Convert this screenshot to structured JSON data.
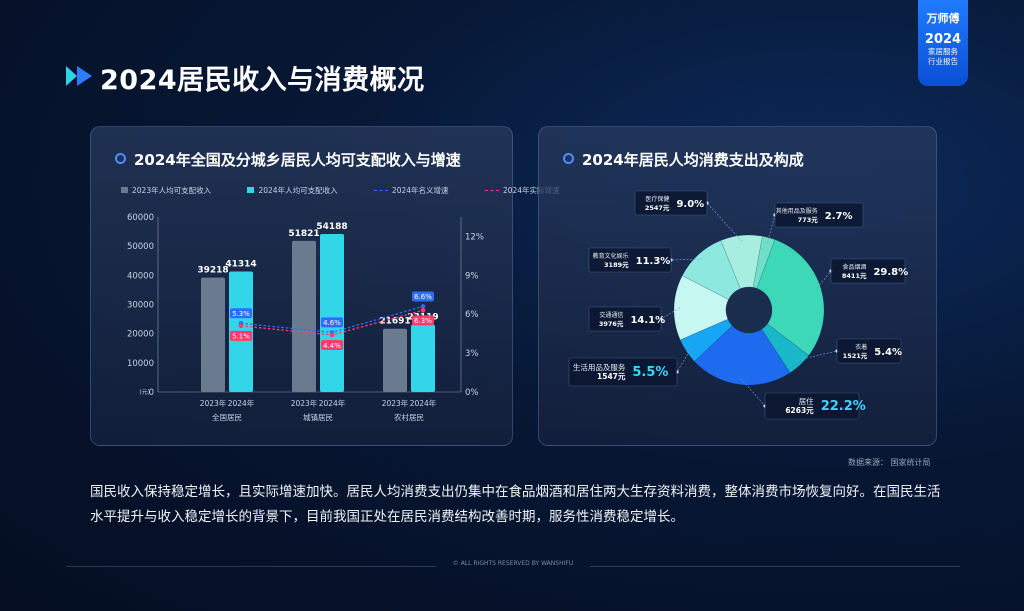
{
  "header": {
    "title": "2024居民收入与消费概况"
  },
  "brand": {
    "name": "万师傅",
    "year": "2024",
    "line1": "家居服务",
    "line2": "行业报告"
  },
  "left_panel": {
    "title": "2024年全国及分城乡居民人均可支配收入与增速",
    "legend": [
      "2023年人均可支配收入",
      "2024年人均可支配收入",
      "2024年名义增速",
      "2024年实际增速"
    ]
  },
  "right_panel": {
    "title": "2024年居民人均消费支出及构成"
  },
  "colors": {
    "bar2023": "#6b7b8f",
    "bar2024": "#33d6e8",
    "nominal": "#2f6bff",
    "real": "#ff3b6b",
    "accent": "#4d8dff",
    "label_pct": "#3fd3ff"
  },
  "chart_data": [
    {
      "type": "bar",
      "title": "2024年全国及分城乡居民人均可支配收入与增速",
      "categories": [
        "全国居民",
        "城镇居民",
        "农村居民"
      ],
      "year_labels": [
        "2023年",
        "2024年"
      ],
      "series": [
        {
          "name": "2023年人均可支配收入",
          "values": [
            39218,
            51821,
            21691
          ]
        },
        {
          "name": "2024年人均可支配收入",
          "values": [
            41314,
            54188,
            23119
          ]
        }
      ],
      "lines": [
        {
          "name": "2024年名义增速",
          "values": [
            5.3,
            4.6,
            6.6
          ],
          "unit": "%"
        },
        {
          "name": "2024年实际增速",
          "values": [
            5.1,
            4.4,
            6.3
          ],
          "unit": "%"
        }
      ],
      "ylim": [
        0,
        60000
      ],
      "yticks": [
        "60000",
        "50000",
        "40000",
        "30000",
        "20000",
        "10000",
        "0"
      ],
      "y_unit_label": "(元)",
      "y2lim": [
        0,
        13.5
      ],
      "y2ticks": [
        "12%",
        "9%",
        "6%",
        "3%",
        "0%"
      ],
      "legend_position": "top"
    },
    {
      "type": "pie",
      "title": "2024年居民人均消费支出及构成",
      "slices": [
        {
          "name": "食品烟酒",
          "amount": "8411元",
          "percent": 29.8,
          "color": "#3cd8b8"
        },
        {
          "name": "衣着",
          "amount": "1521元",
          "percent": 5.4,
          "color": "#19b8c8"
        },
        {
          "name": "居住",
          "amount": "6263元",
          "percent": 22.2,
          "color": "#1e6bf0"
        },
        {
          "name": "生活用品及服务",
          "amount": "1547元",
          "percent": 5.5,
          "color": "#16a6f5"
        },
        {
          "name": "交通通信",
          "amount": "3976元",
          "percent": 14.1,
          "color": "#c6f7f0"
        },
        {
          "name": "教育文化娱乐",
          "amount": "3189元",
          "percent": 11.3,
          "color": "#8de8e0"
        },
        {
          "name": "医疗保健",
          "amount": "2547元",
          "percent": 9.0,
          "color": "#a8eee0"
        },
        {
          "name": "其他用品及服务",
          "amount": "773元",
          "percent": 2.7,
          "color": "#6fe0c8"
        }
      ]
    }
  ],
  "source": "数据来源：  国家统计局",
  "summary": "国民收入保持稳定增长，且实际增速加快。居民人均消费支出仍集中在食品烟酒和居住两大生存资料消费，整体消费市场恢复向好。在国民生活水平提升与收入稳定增长的背景下，目前我国正处在居民消费结构改善时期，服务性消费稳定增长。",
  "footer": "© ALL RIGHTS RESERVED BY WANSHIFU"
}
